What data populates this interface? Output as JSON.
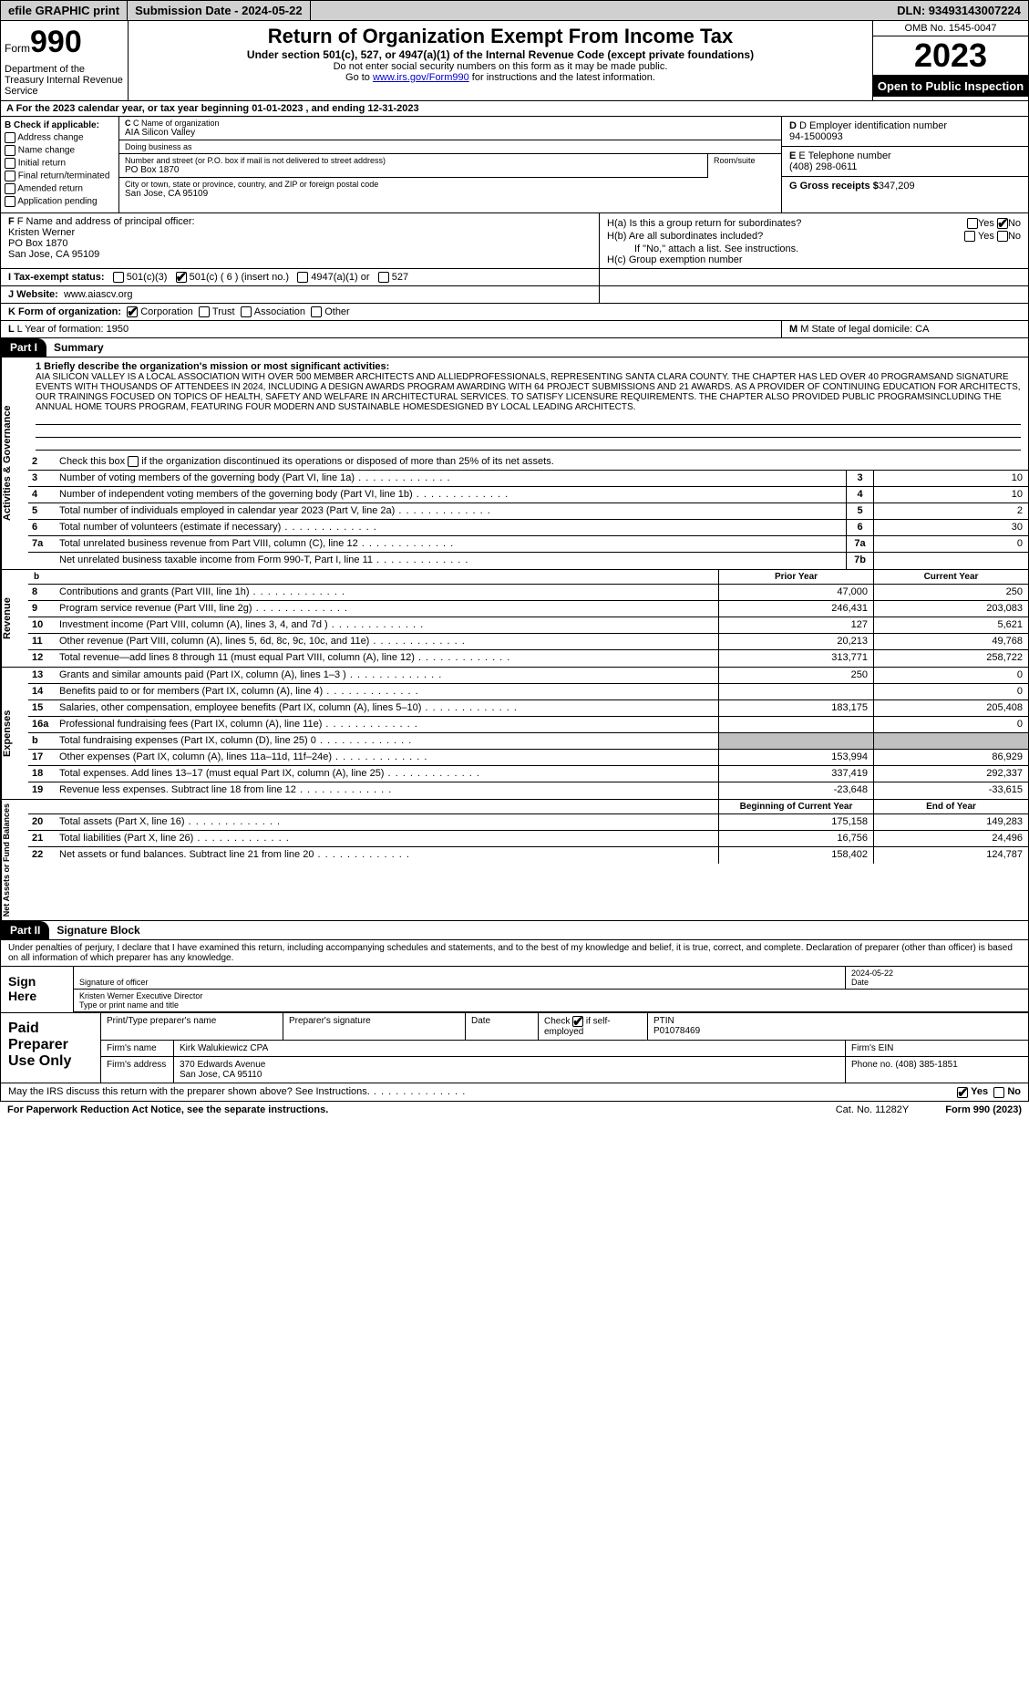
{
  "topbar": {
    "efile": "efile GRAPHIC print",
    "submission": "Submission Date - 2024-05-22",
    "dln": "DLN: 93493143007224"
  },
  "header": {
    "form_word": "Form",
    "form_num": "990",
    "dept": "Department of the Treasury Internal Revenue Service",
    "title": "Return of Organization Exempt From Income Tax",
    "sub": "Under section 501(c), 527, or 4947(a)(1) of the Internal Revenue Code (except private foundations)",
    "note1": "Do not enter social security numbers on this form as it may be made public.",
    "note2_pre": "Go to ",
    "note2_link": "www.irs.gov/Form990",
    "note2_post": " for instructions and the latest information.",
    "omb": "OMB No. 1545-0047",
    "year": "2023",
    "inspect": "Open to Public Inspection"
  },
  "row_a": "A For the 2023 calendar year, or tax year beginning 01-01-2023    , and ending 12-31-2023",
  "col_b": {
    "hdr": "B Check if applicable:",
    "items": [
      "Address change",
      "Name change",
      "Initial return",
      "Final return/terminated",
      "Amended return",
      "Application pending"
    ]
  },
  "col_c": {
    "name_lbl": "C Name of organization",
    "name": "AIA Silicon Valley",
    "dba_lbl": "Doing business as",
    "dba": "",
    "street_lbl": "Number and street (or P.O. box if mail is not delivered to street address)",
    "street": "PO Box 1870",
    "room_lbl": "Room/suite",
    "city_lbl": "City or town, state or province, country, and ZIP or foreign postal code",
    "city": "San Jose, CA  95109"
  },
  "col_d": {
    "ein_lbl": "D Employer identification number",
    "ein": "94-1500093",
    "tel_lbl": "E Telephone number",
    "tel": "(408) 298-0611",
    "gross_lbl": "G Gross receipts $",
    "gross": "347,209"
  },
  "col_f": {
    "lbl": "F Name and address of principal officer:",
    "name": "Kristen Werner",
    "street": "PO Box 1870",
    "city": "San Jose, CA  95109"
  },
  "col_h": {
    "ha": "H(a)  Is this a group return for subordinates?",
    "hb": "H(b)  Are all subordinates included?",
    "hb_note": "If \"No,\" attach a list. See instructions.",
    "hc": "H(c)  Group exemption number"
  },
  "row_i": {
    "lbl": "I  Tax-exempt status:",
    "opt1": "501(c)(3)",
    "opt2": "501(c) ( 6 ) (insert no.)",
    "opt3": "4947(a)(1) or",
    "opt4": "527"
  },
  "row_j": {
    "lbl": "J  Website:",
    "val": "www.aiascv.org"
  },
  "row_k": {
    "lbl": "K Form of organization:",
    "opts": [
      "Corporation",
      "Trust",
      "Association",
      "Other"
    ]
  },
  "row_lm": {
    "l": "L Year of formation: 1950",
    "m": "M State of legal domicile: CA"
  },
  "part1": {
    "hdr": "Part I",
    "title": "Summary",
    "line1_lbl": "1  Briefly describe the organization's mission or most significant activities:",
    "mission": "AIA SILICON VALLEY IS A LOCAL ASSOCIATION WITH OVER 500 MEMBER ARCHITECTS AND ALLIEDPROFESSIONALS, REPRESENTING SANTA CLARA COUNTY. THE CHAPTER HAS LED OVER 40 PROGRAMSAND SIGNATURE EVENTS WITH THOUSANDS OF ATTENDEES IN 2024, INCLUDING A DESIGN AWARDS PROGRAM AWARDING WITH 64 PROJECT SUBMISSIONS AND 21 AWARDS. AS A PROVIDER OF CONTINUING EDUCATION FOR ARCHITECTS, OUR TRAININGS FOCUSED ON TOPICS OF HEALTH, SAFETY AND WELFARE IN ARCHITECTURAL SERVICES. TO SATISFY LICENSURE REQUIREMENTS. THE CHAPTER ALSO PROVIDED PUBLIC PROGRAMSINCLUDING THE ANNUAL HOME TOURS PROGRAM, FEATURING FOUR MODERN AND SUSTAINABLE HOMESDESIGNED BY LOCAL LEADING ARCHITECTS."
  },
  "gov": {
    "label": "Activities & Governance",
    "line2": "Check this box        if the organization discontinued its operations or disposed of more than 25% of its net assets.",
    "rows": [
      {
        "n": "3",
        "t": "Number of voting members of the governing body (Part VI, line 1a)",
        "b": "3",
        "v": "10"
      },
      {
        "n": "4",
        "t": "Number of independent voting members of the governing body (Part VI, line 1b)",
        "b": "4",
        "v": "10"
      },
      {
        "n": "5",
        "t": "Total number of individuals employed in calendar year 2023 (Part V, line 2a)",
        "b": "5",
        "v": "2"
      },
      {
        "n": "6",
        "t": "Total number of volunteers (estimate if necessary)",
        "b": "6",
        "v": "30"
      },
      {
        "n": "7a",
        "t": "Total unrelated business revenue from Part VIII, column (C), line 12",
        "b": "7a",
        "v": "0"
      },
      {
        "n": "",
        "t": "Net unrelated business taxable income from Form 990-T, Part I, line 11",
        "b": "7b",
        "v": ""
      }
    ]
  },
  "rev": {
    "label": "Revenue",
    "hdr_b": "b",
    "hdr1": "Prior Year",
    "hdr2": "Current Year",
    "rows": [
      {
        "n": "8",
        "t": "Contributions and grants (Part VIII, line 1h)",
        "p": "47,000",
        "c": "250"
      },
      {
        "n": "9",
        "t": "Program service revenue (Part VIII, line 2g)",
        "p": "246,431",
        "c": "203,083"
      },
      {
        "n": "10",
        "t": "Investment income (Part VIII, column (A), lines 3, 4, and 7d )",
        "p": "127",
        "c": "5,621"
      },
      {
        "n": "11",
        "t": "Other revenue (Part VIII, column (A), lines 5, 6d, 8c, 9c, 10c, and 11e)",
        "p": "20,213",
        "c": "49,768"
      },
      {
        "n": "12",
        "t": "Total revenue—add lines 8 through 11 (must equal Part VIII, column (A), line 12)",
        "p": "313,771",
        "c": "258,722"
      }
    ]
  },
  "exp": {
    "label": "Expenses",
    "rows": [
      {
        "n": "13",
        "t": "Grants and similar amounts paid (Part IX, column (A), lines 1–3 )",
        "p": "250",
        "c": "0"
      },
      {
        "n": "14",
        "t": "Benefits paid to or for members (Part IX, column (A), line 4)",
        "p": "",
        "c": "0"
      },
      {
        "n": "15",
        "t": "Salaries, other compensation, employee benefits (Part IX, column (A), lines 5–10)",
        "p": "183,175",
        "c": "205,408"
      },
      {
        "n": "16a",
        "t": "Professional fundraising fees (Part IX, column (A), line 11e)",
        "p": "",
        "c": "0"
      },
      {
        "n": "b",
        "t": "Total fundraising expenses (Part IX, column (D), line 25) 0",
        "p": "SHADE",
        "c": "SHADE"
      },
      {
        "n": "17",
        "t": "Other expenses (Part IX, column (A), lines 11a–11d, 11f–24e)",
        "p": "153,994",
        "c": "86,929"
      },
      {
        "n": "18",
        "t": "Total expenses. Add lines 13–17 (must equal Part IX, column (A), line 25)",
        "p": "337,419",
        "c": "292,337"
      },
      {
        "n": "19",
        "t": "Revenue less expenses. Subtract line 18 from line 12",
        "p": "-23,648",
        "c": "-33,615"
      }
    ]
  },
  "net": {
    "label": "Net Assets or Fund Balances",
    "hdr1": "Beginning of Current Year",
    "hdr2": "End of Year",
    "rows": [
      {
        "n": "20",
        "t": "Total assets (Part X, line 16)",
        "p": "175,158",
        "c": "149,283"
      },
      {
        "n": "21",
        "t": "Total liabilities (Part X, line 26)",
        "p": "16,756",
        "c": "24,496"
      },
      {
        "n": "22",
        "t": "Net assets or fund balances. Subtract line 21 from line 20",
        "p": "158,402",
        "c": "124,787"
      }
    ]
  },
  "part2": {
    "hdr": "Part II",
    "title": "Signature Block",
    "decl": "Under penalties of perjury, I declare that I have examined this return, including accompanying schedules and statements, and to the best of my knowledge and belief, it is true, correct, and complete. Declaration of preparer (other than officer) is based on all information of which preparer has any knowledge."
  },
  "sign": {
    "label": "Sign Here",
    "sig_lbl": "Signature of officer",
    "date": "2024-05-22",
    "date_lbl": "Date",
    "name": "Kristen Werner  Executive Director",
    "name_lbl": "Type or print name and title"
  },
  "prep": {
    "label": "Paid Preparer Use Only",
    "h1": "Print/Type preparer's name",
    "h2": "Preparer's signature",
    "h3": "Date",
    "h4": "Check         if self-employed",
    "h5_lbl": "PTIN",
    "h5": "P01078469",
    "firm_lbl": "Firm's name",
    "firm": "Kirk Walukiewicz CPA",
    "ein_lbl": "Firm's EIN",
    "addr_lbl": "Firm's address",
    "addr1": "370 Edwards Avenue",
    "addr2": "San Jose, CA  95110",
    "phone_lbl": "Phone no.",
    "phone": "(408) 385-1851"
  },
  "footer_q": "May the IRS discuss this return with the preparer shown above? See Instructions.",
  "footer": {
    "left": "For Paperwork Reduction Act Notice, see the separate instructions.",
    "cat": "Cat. No. 11282Y",
    "right": "Form 990 (2023)"
  },
  "yn": {
    "yes": "Yes",
    "no": "No"
  }
}
